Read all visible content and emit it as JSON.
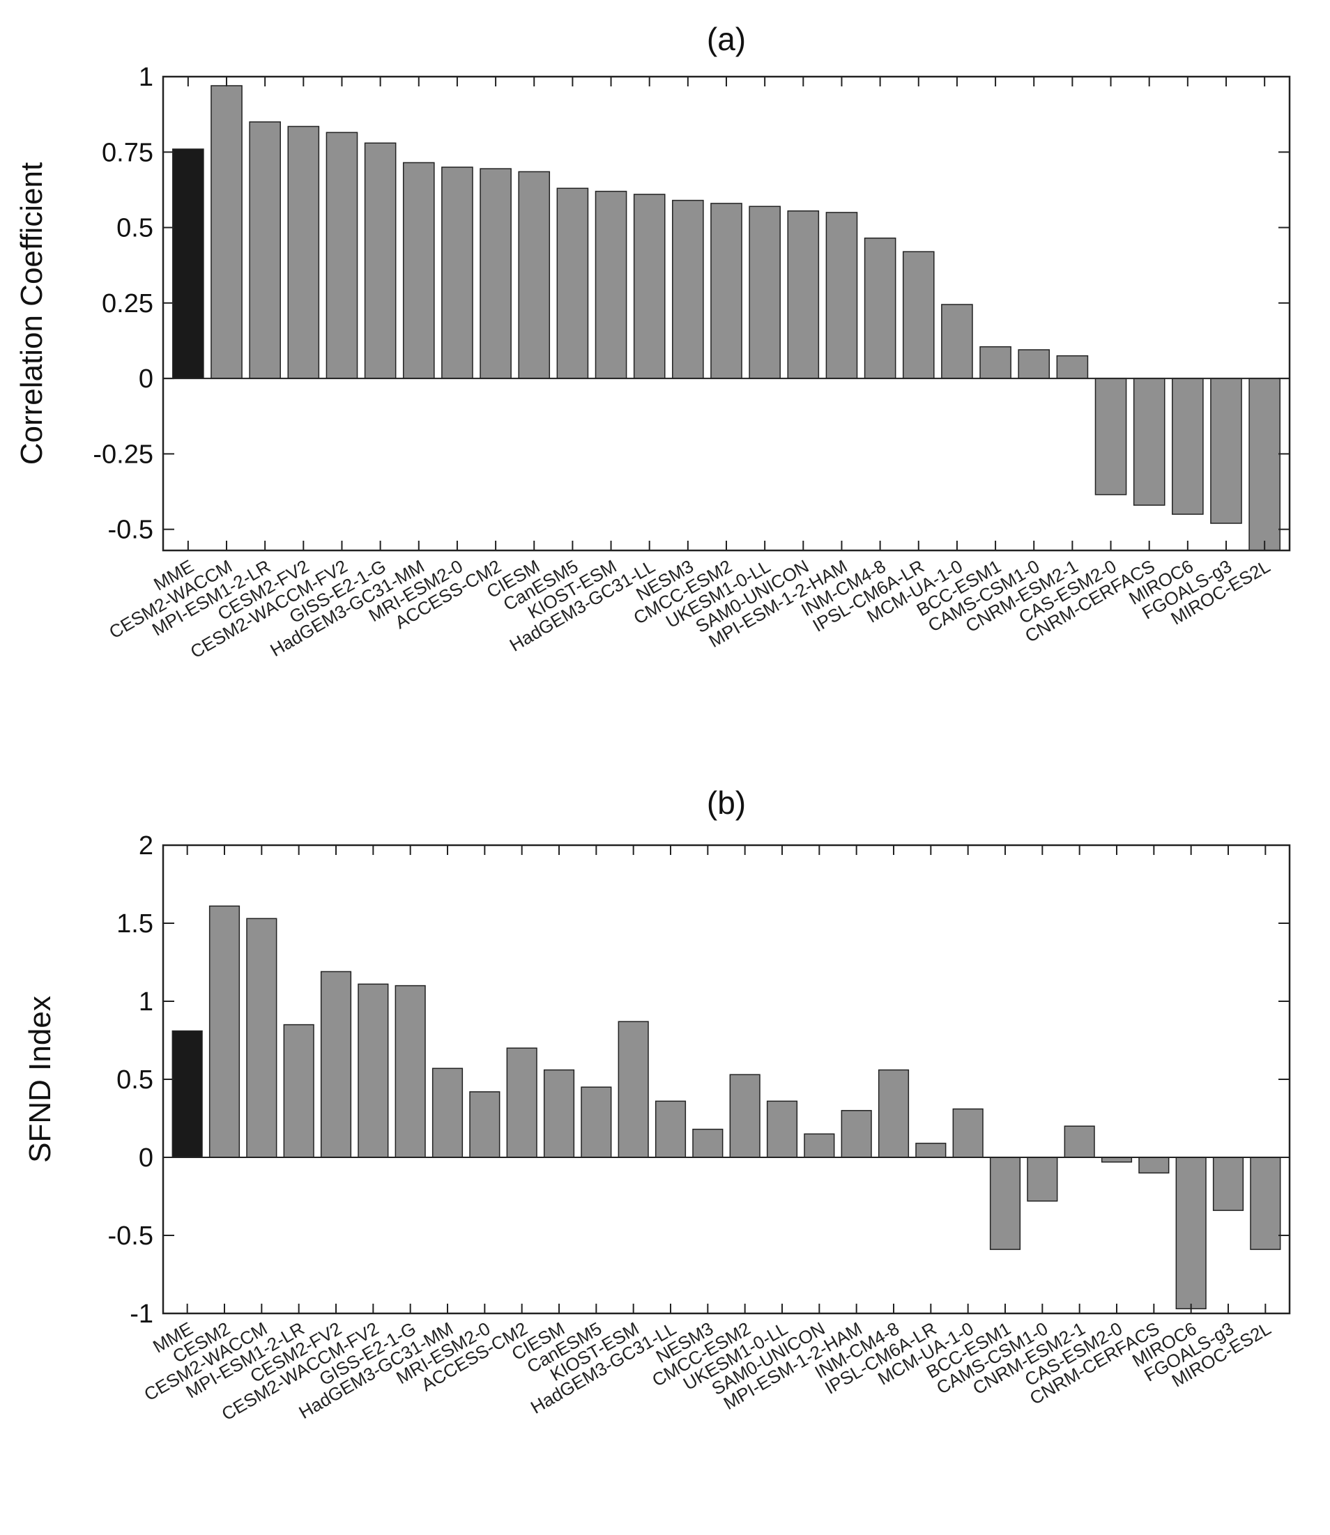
{
  "chart_data": [
    {
      "type": "bar",
      "title": "(a)",
      "xlabel": "",
      "ylabel": "Correlation Coefficient",
      "ylim": [
        -0.57,
        1
      ],
      "yticks": [
        1,
        0.75,
        0.5,
        0.25,
        0,
        -0.25,
        -0.5
      ],
      "ytick_labels": [
        "1",
        "0.75",
        "0.5",
        "0.25",
        "0",
        "-0.25",
        "-0.5"
      ],
      "grid": false,
      "colors": {
        "highlight": "#1a1a1a",
        "bar": "#909090"
      },
      "categories": [
        "MME",
        "CESM2-WACCM",
        "MPI-ESM1-2-LR",
        "CESM2-FV2",
        "CESM2-WACCM-FV2",
        "GISS-E2-1-G",
        "HadGEM3-GC31-MM",
        "MRI-ESM2-0",
        "ACCESS-CM2",
        "CIESM",
        "CanESM5",
        "KIOST-ESM",
        "HadGEM3-GC31-LL",
        "NESM3",
        "CMCC-ESM2",
        "UKESM1-0-LL",
        "SAM0-UNICON",
        "MPI-ESM-1-2-HAM",
        "INM-CM4-8",
        "IPSL-CM6A-LR",
        "MCM-UA-1-0",
        "BCC-ESM1",
        "CAMS-CSM1-0",
        "CNRM-ESM2-1",
        "CAS-ESM2-0",
        "CNRM-CERFACS",
        "MIROC6",
        "FGOALS-g3",
        "MIROC-ES2L"
      ],
      "values": [
        0.76,
        0.97,
        0.85,
        0.835,
        0.815,
        0.78,
        0.715,
        0.7,
        0.695,
        0.685,
        0.63,
        0.62,
        0.61,
        0.59,
        0.58,
        0.57,
        0.555,
        0.55,
        0.465,
        0.42,
        0.245,
        0.105,
        0.095,
        0.075,
        -0.385,
        -0.42,
        -0.45,
        -0.48,
        -0.57
      ],
      "highlight_index": 0
    },
    {
      "type": "bar",
      "title": "(b)",
      "xlabel": "",
      "ylabel": "SFND Index",
      "ylim": [
        -1,
        2
      ],
      "yticks": [
        2,
        1.5,
        1,
        0.5,
        0,
        -0.5,
        -1
      ],
      "ytick_labels": [
        "2",
        "1.5",
        "1",
        "0.5",
        "0",
        "-0.5",
        "-1"
      ],
      "grid": false,
      "colors": {
        "highlight": "#1a1a1a",
        "bar": "#909090"
      },
      "categories": [
        "MME",
        "CESM2",
        "CESM2-WACCM",
        "MPI-ESM1-2-LR",
        "CESM2-FV2",
        "CESM2-WACCM-FV2",
        "GISS-E2-1-G",
        "HadGEM3-GC31-MM",
        "MRI-ESM2-0",
        "ACCESS-CM2",
        "CIESM",
        "CanESM5",
        "KIOST-ESM",
        "HadGEM3-GC31-LL",
        "NESM3",
        "CMCC-ESM2",
        "UKESM1-0-LL",
        "SAM0-UNICON",
        "MPI-ESM-1-2-HAM",
        "INM-CM4-8",
        "IPSL-CM6A-LR",
        "MCM-UA-1-0",
        "BCC-ESM1",
        "CAMS-CSM1-0",
        "CNRM-ESM2-1",
        "CAS-ESM2-0",
        "CNRM-CERFACS",
        "MIROC6",
        "FGOALS-g3",
        "MIROC-ES2L"
      ],
      "values": [
        0.81,
        1.61,
        1.53,
        0.85,
        1.19,
        1.11,
        1.1,
        0.57,
        0.42,
        0.7,
        0.56,
        0.45,
        0.87,
        0.36,
        0.18,
        0.53,
        0.36,
        0.15,
        0.3,
        0.56,
        0.09,
        0.31,
        -0.59,
        -0.28,
        0.2,
        -0.03,
        -0.1,
        -0.97,
        -0.34,
        -0.59
      ],
      "highlight_index": 0
    }
  ]
}
